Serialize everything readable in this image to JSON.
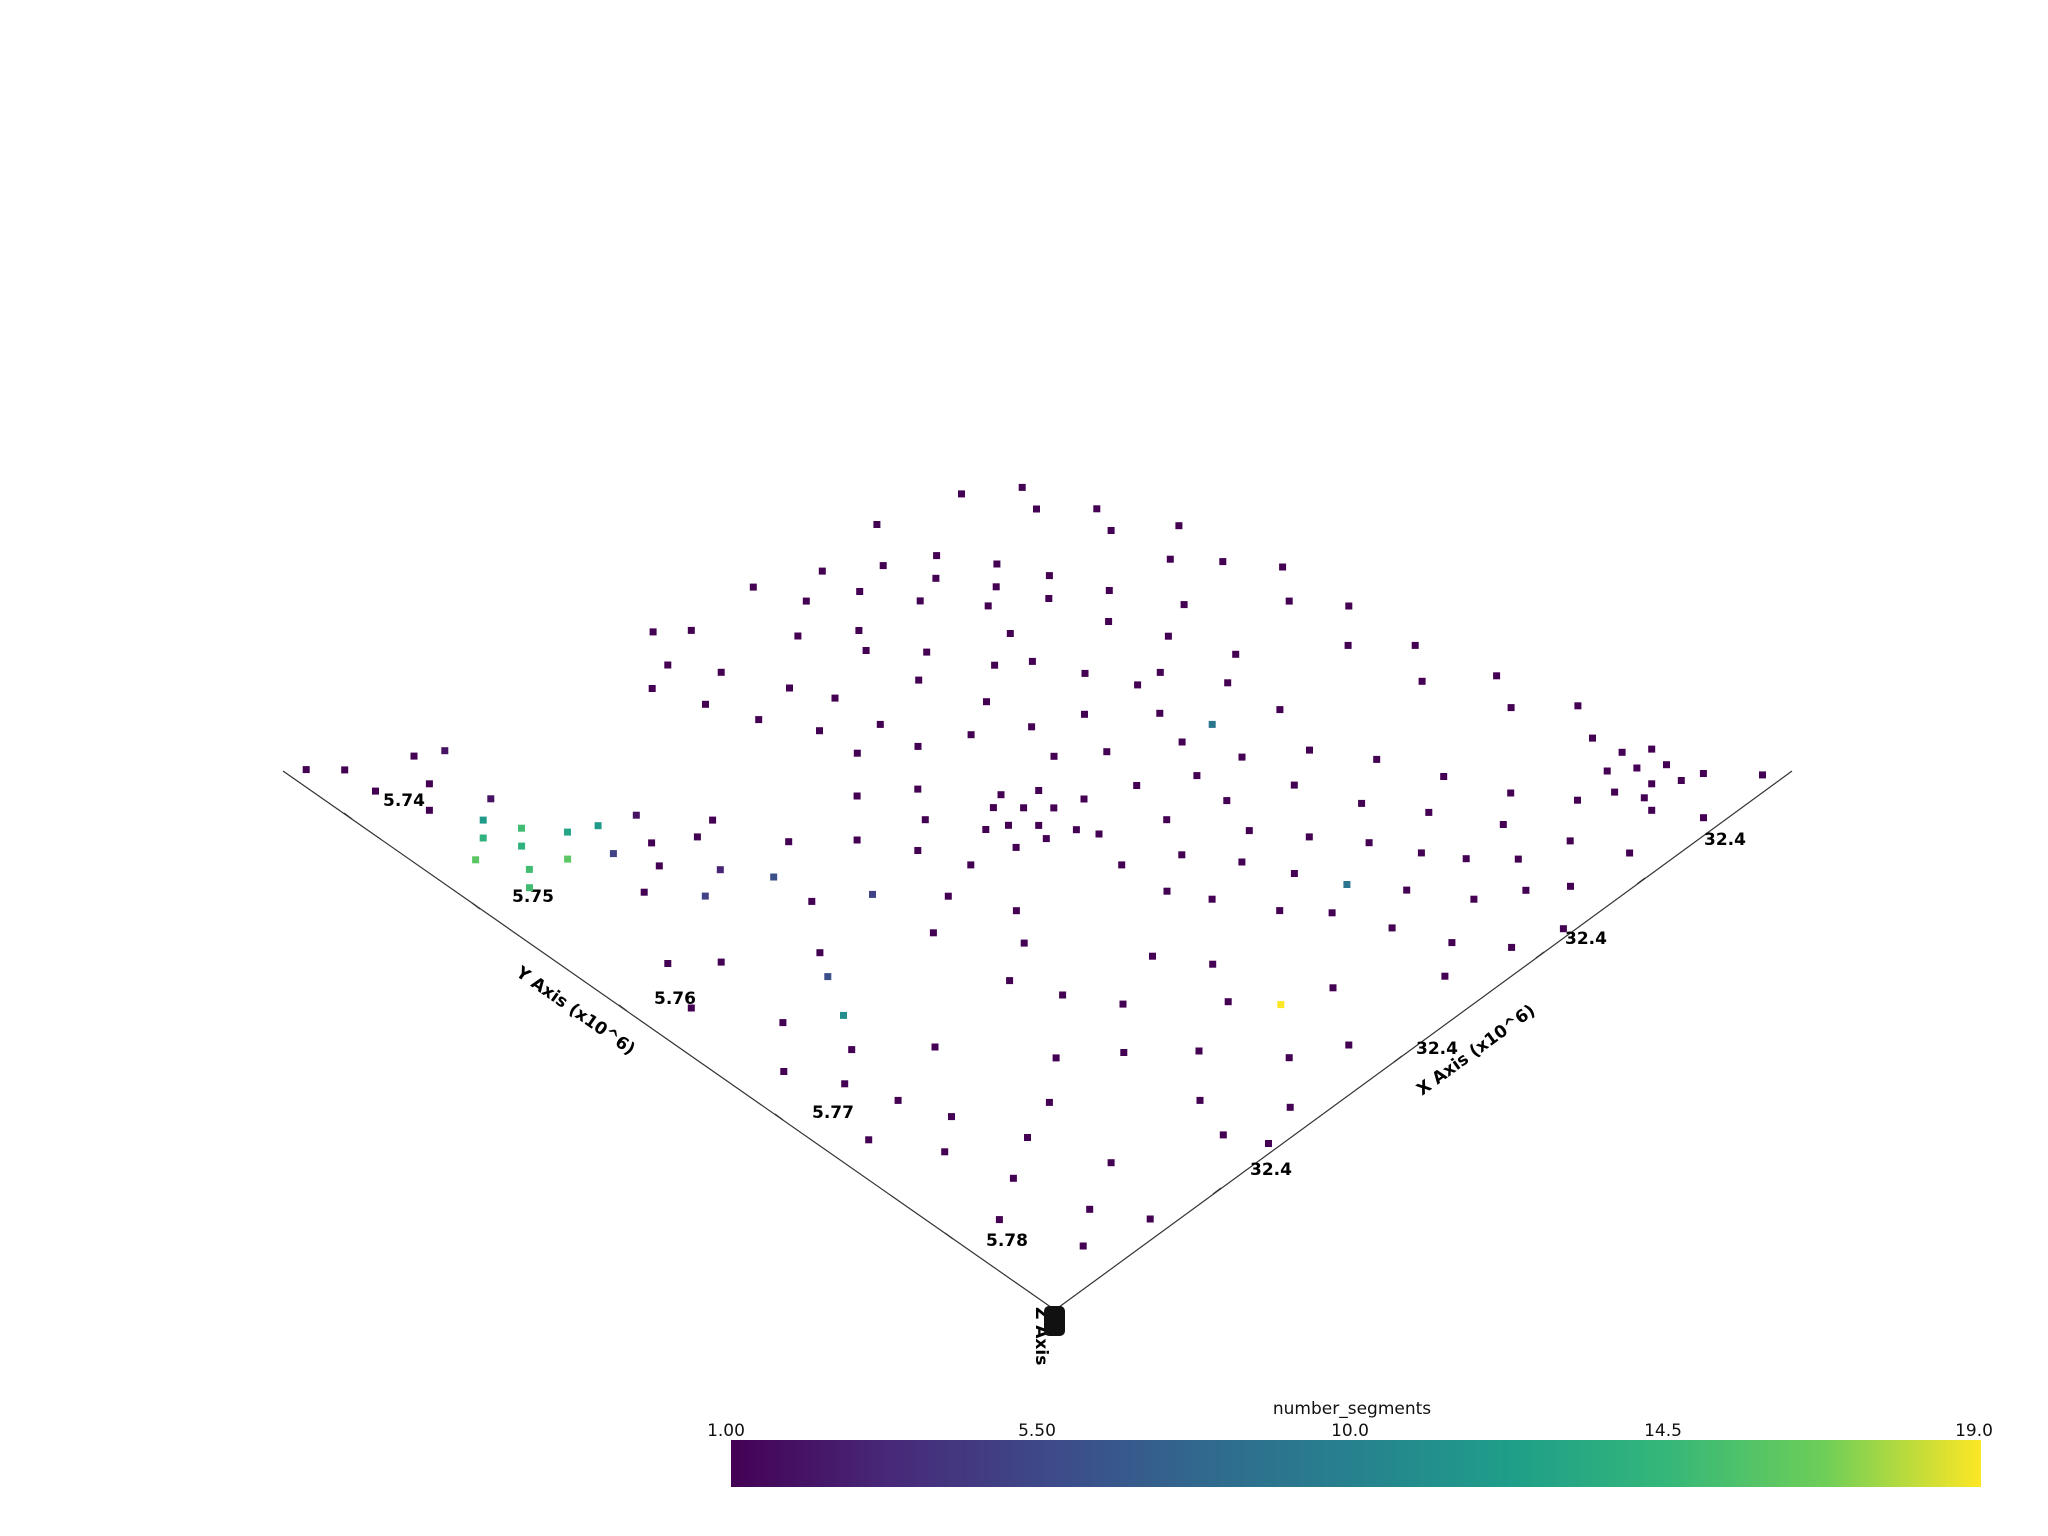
{
  "chart_data": {
    "type": "scatter",
    "projection": "3d-isometric",
    "x_axis": {
      "title": "X Axis (x10^6)",
      "tick_labels": [
        "32.4",
        "32.4",
        "32.4",
        "32.4"
      ]
    },
    "y_axis": {
      "title": "Y Axis (x10^6)",
      "tick_labels": [
        "5.74",
        "5.75",
        "5.76",
        "5.77",
        "5.78"
      ]
    },
    "z_axis": {
      "title": "Z Axis"
    },
    "scalar_bar": {
      "title": "number_segments",
      "colormap": "viridis",
      "range": [
        1.0,
        19.0
      ],
      "tick_labels": [
        "1.00",
        "5.50",
        "10.0",
        "14.5",
        "19.0"
      ]
    },
    "series": [
      {
        "values": [
          [
            0.01,
            0.02,
            1
          ],
          [
            0.03,
            0.05,
            1
          ],
          [
            0.05,
            0.12,
            1
          ],
          [
            0.07,
            0.05,
            1
          ],
          [
            0.06,
            0.15,
            2
          ],
          [
            0.09,
            0.1,
            1
          ],
          [
            0.12,
            0.07,
            1
          ],
          [
            0.14,
            0.13,
            2
          ],
          [
            0.16,
            0.1,
            12
          ],
          [
            0.18,
            0.08,
            14
          ],
          [
            0.19,
            0.12,
            15
          ],
          [
            0.21,
            0.1,
            14
          ],
          [
            0.2,
            0.05,
            16
          ],
          [
            0.22,
            0.15,
            13
          ],
          [
            0.23,
            0.18,
            12
          ],
          [
            0.24,
            0.08,
            15
          ],
          [
            0.25,
            0.12,
            16
          ],
          [
            0.26,
            0.06,
            15
          ],
          [
            0.27,
            0.16,
            5
          ],
          [
            0.24,
            0.22,
            2
          ],
          [
            0.28,
            0.2,
            1
          ],
          [
            0.3,
            0.24,
            1
          ],
          [
            0.31,
            0.18,
            1
          ],
          [
            0.29,
            0.27,
            1
          ],
          [
            0.33,
            0.14,
            1
          ],
          [
            0.35,
            0.22,
            3
          ],
          [
            0.37,
            0.18,
            5
          ],
          [
            0.36,
            0.3,
            1
          ],
          [
            0.39,
            0.25,
            6
          ],
          [
            0.42,
            0.08,
            1
          ],
          [
            0.45,
            0.12,
            1
          ],
          [
            0.48,
            0.05,
            1
          ],
          [
            0.44,
            0.25,
            1
          ],
          [
            0.47,
            0.3,
            5
          ],
          [
            0.5,
            0.2,
            1
          ],
          [
            0.53,
            0.18,
            6
          ],
          [
            0.55,
            0.1,
            1
          ],
          [
            0.58,
            0.15,
            11
          ],
          [
            0.6,
            0.05,
            1
          ],
          [
            0.62,
            0.12,
            1
          ],
          [
            0.65,
            0.08,
            1
          ],
          [
            0.67,
            0.18,
            1
          ],
          [
            0.7,
            0.1,
            1
          ],
          [
            0.72,
            0.04,
            1
          ],
          [
            0.75,
            0.12,
            1
          ],
          [
            0.78,
            0.08,
            1
          ],
          [
            0.8,
            0.2,
            1
          ],
          [
            0.76,
            0.25,
            1
          ],
          [
            0.82,
            0.15,
            1
          ],
          [
            0.85,
            0.1,
            1
          ],
          [
            0.88,
            0.05,
            1
          ],
          [
            0.9,
            0.18,
            1
          ],
          [
            0.93,
            0.12,
            1
          ],
          [
            0.96,
            0.08,
            1
          ],
          [
            0.98,
            0.15,
            1
          ],
          [
            0.8,
            0.3,
            1
          ],
          [
            0.85,
            0.35,
            1
          ],
          [
            0.9,
            0.3,
            1
          ],
          [
            0.95,
            0.28,
            1
          ],
          [
            0.75,
            0.35,
            1
          ],
          [
            0.7,
            0.32,
            1
          ],
          [
            0.72,
            0.42,
            1
          ],
          [
            0.77,
            0.45,
            1
          ],
          [
            0.82,
            0.42,
            1
          ],
          [
            0.86,
            0.45,
            19
          ],
          [
            0.88,
            0.5,
            1
          ],
          [
            0.92,
            0.4,
            1
          ],
          [
            0.95,
            0.45,
            1
          ],
          [
            0.97,
            0.35,
            1
          ],
          [
            0.99,
            0.3,
            1
          ],
          [
            0.65,
            0.3,
            1
          ],
          [
            0.62,
            0.35,
            1
          ],
          [
            0.58,
            0.38,
            1
          ],
          [
            0.55,
            0.3,
            1
          ],
          [
            0.52,
            0.35,
            1
          ],
          [
            0.5,
            0.4,
            1
          ],
          [
            0.47,
            0.45,
            1
          ],
          [
            0.45,
            0.38,
            1
          ],
          [
            0.42,
            0.42,
            1
          ],
          [
            0.4,
            0.35,
            1
          ],
          [
            0.38,
            0.45,
            1
          ],
          [
            0.35,
            0.4,
            1
          ],
          [
            0.33,
            0.5,
            1
          ],
          [
            0.3,
            0.45,
            1
          ],
          [
            0.28,
            0.5,
            1
          ],
          [
            0.25,
            0.45,
            1
          ],
          [
            0.22,
            0.5,
            1
          ],
          [
            0.2,
            0.42,
            1
          ],
          [
            0.18,
            0.48,
            1
          ],
          [
            0.15,
            0.4,
            1
          ],
          [
            0.12,
            0.45,
            1
          ],
          [
            0.1,
            0.38,
            1
          ],
          [
            0.08,
            0.42,
            1
          ],
          [
            0.05,
            0.48,
            1
          ],
          [
            0.03,
            0.45,
            1
          ],
          [
            0.12,
            0.55,
            1
          ],
          [
            0.15,
            0.6,
            1
          ],
          [
            0.18,
            0.58,
            1
          ],
          [
            0.22,
            0.62,
            1
          ],
          [
            0.25,
            0.58,
            1
          ],
          [
            0.28,
            0.65,
            1
          ],
          [
            0.32,
            0.6,
            1
          ],
          [
            0.35,
            0.55,
            1
          ],
          [
            0.38,
            0.6,
            1
          ],
          [
            0.4,
            0.65,
            1
          ],
          [
            0.43,
            0.58,
            1
          ],
          [
            0.46,
            0.62,
            1
          ],
          [
            0.5,
            0.55,
            1
          ],
          [
            0.52,
            0.6,
            1
          ],
          [
            0.55,
            0.52,
            1
          ],
          [
            0.58,
            0.58,
            1
          ],
          [
            0.6,
            0.5,
            1
          ],
          [
            0.63,
            0.55,
            1
          ],
          [
            0.66,
            0.5,
            1
          ],
          [
            0.68,
            0.58,
            1
          ],
          [
            0.7,
            0.52,
            1
          ],
          [
            0.73,
            0.6,
            1
          ],
          [
            0.76,
            0.55,
            1
          ],
          [
            0.78,
            0.62,
            9
          ],
          [
            0.8,
            0.58,
            1
          ],
          [
            0.83,
            0.65,
            1
          ],
          [
            0.86,
            0.6,
            1
          ],
          [
            0.89,
            0.68,
            1
          ],
          [
            0.92,
            0.62,
            1
          ],
          [
            0.95,
            0.58,
            1
          ],
          [
            0.97,
            0.65,
            1
          ],
          [
            0.99,
            0.7,
            1
          ],
          [
            0.45,
            0.48,
            1
          ],
          [
            0.47,
            0.5,
            1
          ],
          [
            0.48,
            0.47,
            1
          ],
          [
            0.5,
            0.49,
            1
          ],
          [
            0.49,
            0.52,
            1
          ],
          [
            0.52,
            0.48,
            1
          ],
          [
            0.46,
            0.53,
            1
          ],
          [
            0.51,
            0.45,
            1
          ],
          [
            0.53,
            0.51,
            1
          ],
          [
            0.44,
            0.5,
            1
          ],
          [
            0.05,
            0.65,
            1
          ],
          [
            0.08,
            0.7,
            1
          ],
          [
            0.1,
            0.75,
            1
          ],
          [
            0.13,
            0.72,
            1
          ],
          [
            0.15,
            0.78,
            1
          ],
          [
            0.18,
            0.75,
            1
          ],
          [
            0.2,
            0.8,
            1
          ],
          [
            0.23,
            0.77,
            1
          ],
          [
            0.26,
            0.82,
            1
          ],
          [
            0.3,
            0.78,
            1
          ],
          [
            0.33,
            0.85,
            1
          ],
          [
            0.36,
            0.8,
            1
          ],
          [
            0.4,
            0.75,
            1
          ],
          [
            0.43,
            0.82,
            1
          ],
          [
            0.46,
            0.78,
            1
          ],
          [
            0.5,
            0.72,
            9
          ],
          [
            0.53,
            0.78,
            1
          ],
          [
            0.56,
            0.7,
            1
          ],
          [
            0.6,
            0.75,
            1
          ],
          [
            0.63,
            0.7,
            1
          ],
          [
            0.66,
            0.78,
            1
          ],
          [
            0.7,
            0.72,
            1
          ],
          [
            0.73,
            0.8,
            1
          ],
          [
            0.76,
            0.75,
            1
          ],
          [
            0.8,
            0.82,
            1
          ],
          [
            0.83,
            0.78,
            1
          ],
          [
            0.86,
            0.85,
            1
          ],
          [
            0.9,
            0.8,
            1
          ],
          [
            0.93,
            0.88,
            1
          ],
          [
            0.96,
            0.82,
            1
          ],
          [
            0.98,
            0.9,
            1
          ],
          [
            0.85,
            0.9,
            1
          ],
          [
            0.87,
            0.92,
            1
          ],
          [
            0.88,
            0.88,
            1
          ],
          [
            0.9,
            0.91,
            1
          ],
          [
            0.89,
            0.94,
            1
          ],
          [
            0.91,
            0.89,
            1
          ],
          [
            0.92,
            0.93,
            1
          ],
          [
            0.86,
            0.95,
            1
          ],
          [
            0.84,
            0.93,
            1
          ],
          [
            0.93,
            0.95,
            1
          ],
          [
            0.03,
            0.85,
            1
          ],
          [
            0.06,
            0.9,
            1
          ],
          [
            0.1,
            0.88,
            1
          ],
          [
            0.14,
            0.92,
            1
          ],
          [
            0.18,
            0.9,
            1
          ],
          [
            0.22,
            0.95,
            1
          ],
          [
            0.26,
            0.9,
            1
          ],
          [
            0.3,
            0.93,
            1
          ],
          [
            0.35,
            0.96,
            1
          ],
          [
            0.4,
            0.92,
            1
          ],
          [
            0.45,
            0.95,
            1
          ],
          [
            0.5,
            0.9,
            1
          ],
          [
            0.55,
            0.94,
            1
          ],
          [
            0.6,
            0.9,
            1
          ],
          [
            0.65,
            0.95,
            1
          ],
          [
            0.7,
            0.92,
            1
          ],
          [
            0.75,
            0.96,
            1
          ],
          [
            0.8,
            0.93,
            1
          ],
          [
            0.98,
            0.98,
            1
          ],
          [
            0.95,
            0.75,
            1
          ],
          [
            0.92,
            0.72,
            1
          ],
          [
            0.88,
            0.75,
            1
          ],
          [
            0.84,
            0.72,
            1
          ],
          [
            0.8,
            0.7,
            1
          ],
          [
            0.75,
            0.68,
            1
          ],
          [
            0.7,
            0.65,
            1
          ],
          [
            0.65,
            0.62,
            1
          ],
          [
            0.6,
            0.64,
            1
          ],
          [
            0.55,
            0.65,
            1
          ],
          [
            0.5,
            0.68,
            1
          ],
          [
            0.45,
            0.7,
            1
          ],
          [
            0.4,
            0.72,
            1
          ],
          [
            0.35,
            0.7,
            1
          ],
          [
            0.3,
            0.68,
            1
          ],
          [
            0.25,
            0.7,
            1
          ],
          [
            0.2,
            0.72,
            1
          ],
          [
            0.15,
            0.68,
            1
          ],
          [
            0.1,
            0.65,
            1
          ],
          [
            0.08,
            0.6,
            1
          ],
          [
            0.03,
            0.58,
            1
          ],
          [
            0.02,
            0.75,
            1
          ]
        ]
      }
    ]
  }
}
